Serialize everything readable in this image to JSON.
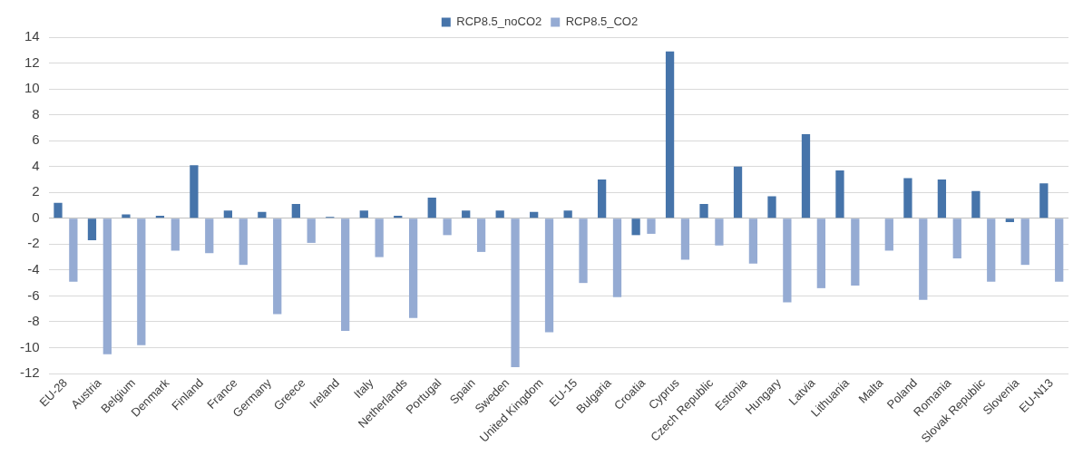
{
  "chart_data": {
    "type": "bar",
    "categories": [
      "EU-28",
      "Austria",
      "Belgium",
      "Denmark",
      "Finland",
      "France",
      "Germany",
      "Greece",
      "Ireland",
      "Italy",
      "Netherlands",
      "Portugal",
      "Spain",
      "Sweden",
      "United Kingdom",
      "EU-15",
      "Bulgaria",
      "Croatia",
      "Cyprus",
      "Czech Republic",
      "Estonia",
      "Hungary",
      "Latvia",
      "Lithuania",
      "Malta",
      "Poland",
      "Romania",
      "Slovak Republic",
      "Slovenia",
      "EU-N13"
    ],
    "series": [
      {
        "name": "RCP8.5_noCO2",
        "color": "#4674aa",
        "values": [
          1.2,
          -1.7,
          0.3,
          0.2,
          4.1,
          0.6,
          0.5,
          1.1,
          0.1,
          0.6,
          0.2,
          1.6,
          0.6,
          0.6,
          0.5,
          0.6,
          3.0,
          -1.3,
          12.9,
          1.1,
          4.0,
          1.7,
          6.5,
          3.7,
          0,
          3.1,
          3.0,
          2.1,
          -0.3,
          2.7
        ]
      },
      {
        "name": "RCP8.5_CO2",
        "color": "#95abd3",
        "values": [
          -4.9,
          -10.5,
          -9.8,
          -2.5,
          -2.7,
          -3.6,
          -7.4,
          -1.9,
          -8.7,
          -3.0,
          -7.7,
          -1.3,
          -2.6,
          -11.5,
          -8.8,
          -5.0,
          -6.1,
          -1.2,
          -3.2,
          -2.1,
          -3.5,
          -6.5,
          -5.4,
          -5.2,
          -2.5,
          -6.3,
          -3.1,
          -4.9,
          -3.6,
          -4.9
        ]
      }
    ],
    "ylim": [
      -12,
      14
    ],
    "yticks": [
      -12,
      -10,
      -8,
      -6,
      -4,
      -2,
      0,
      2,
      4,
      6,
      8,
      10,
      12,
      14
    ],
    "grid": "y",
    "legend": "top"
  }
}
